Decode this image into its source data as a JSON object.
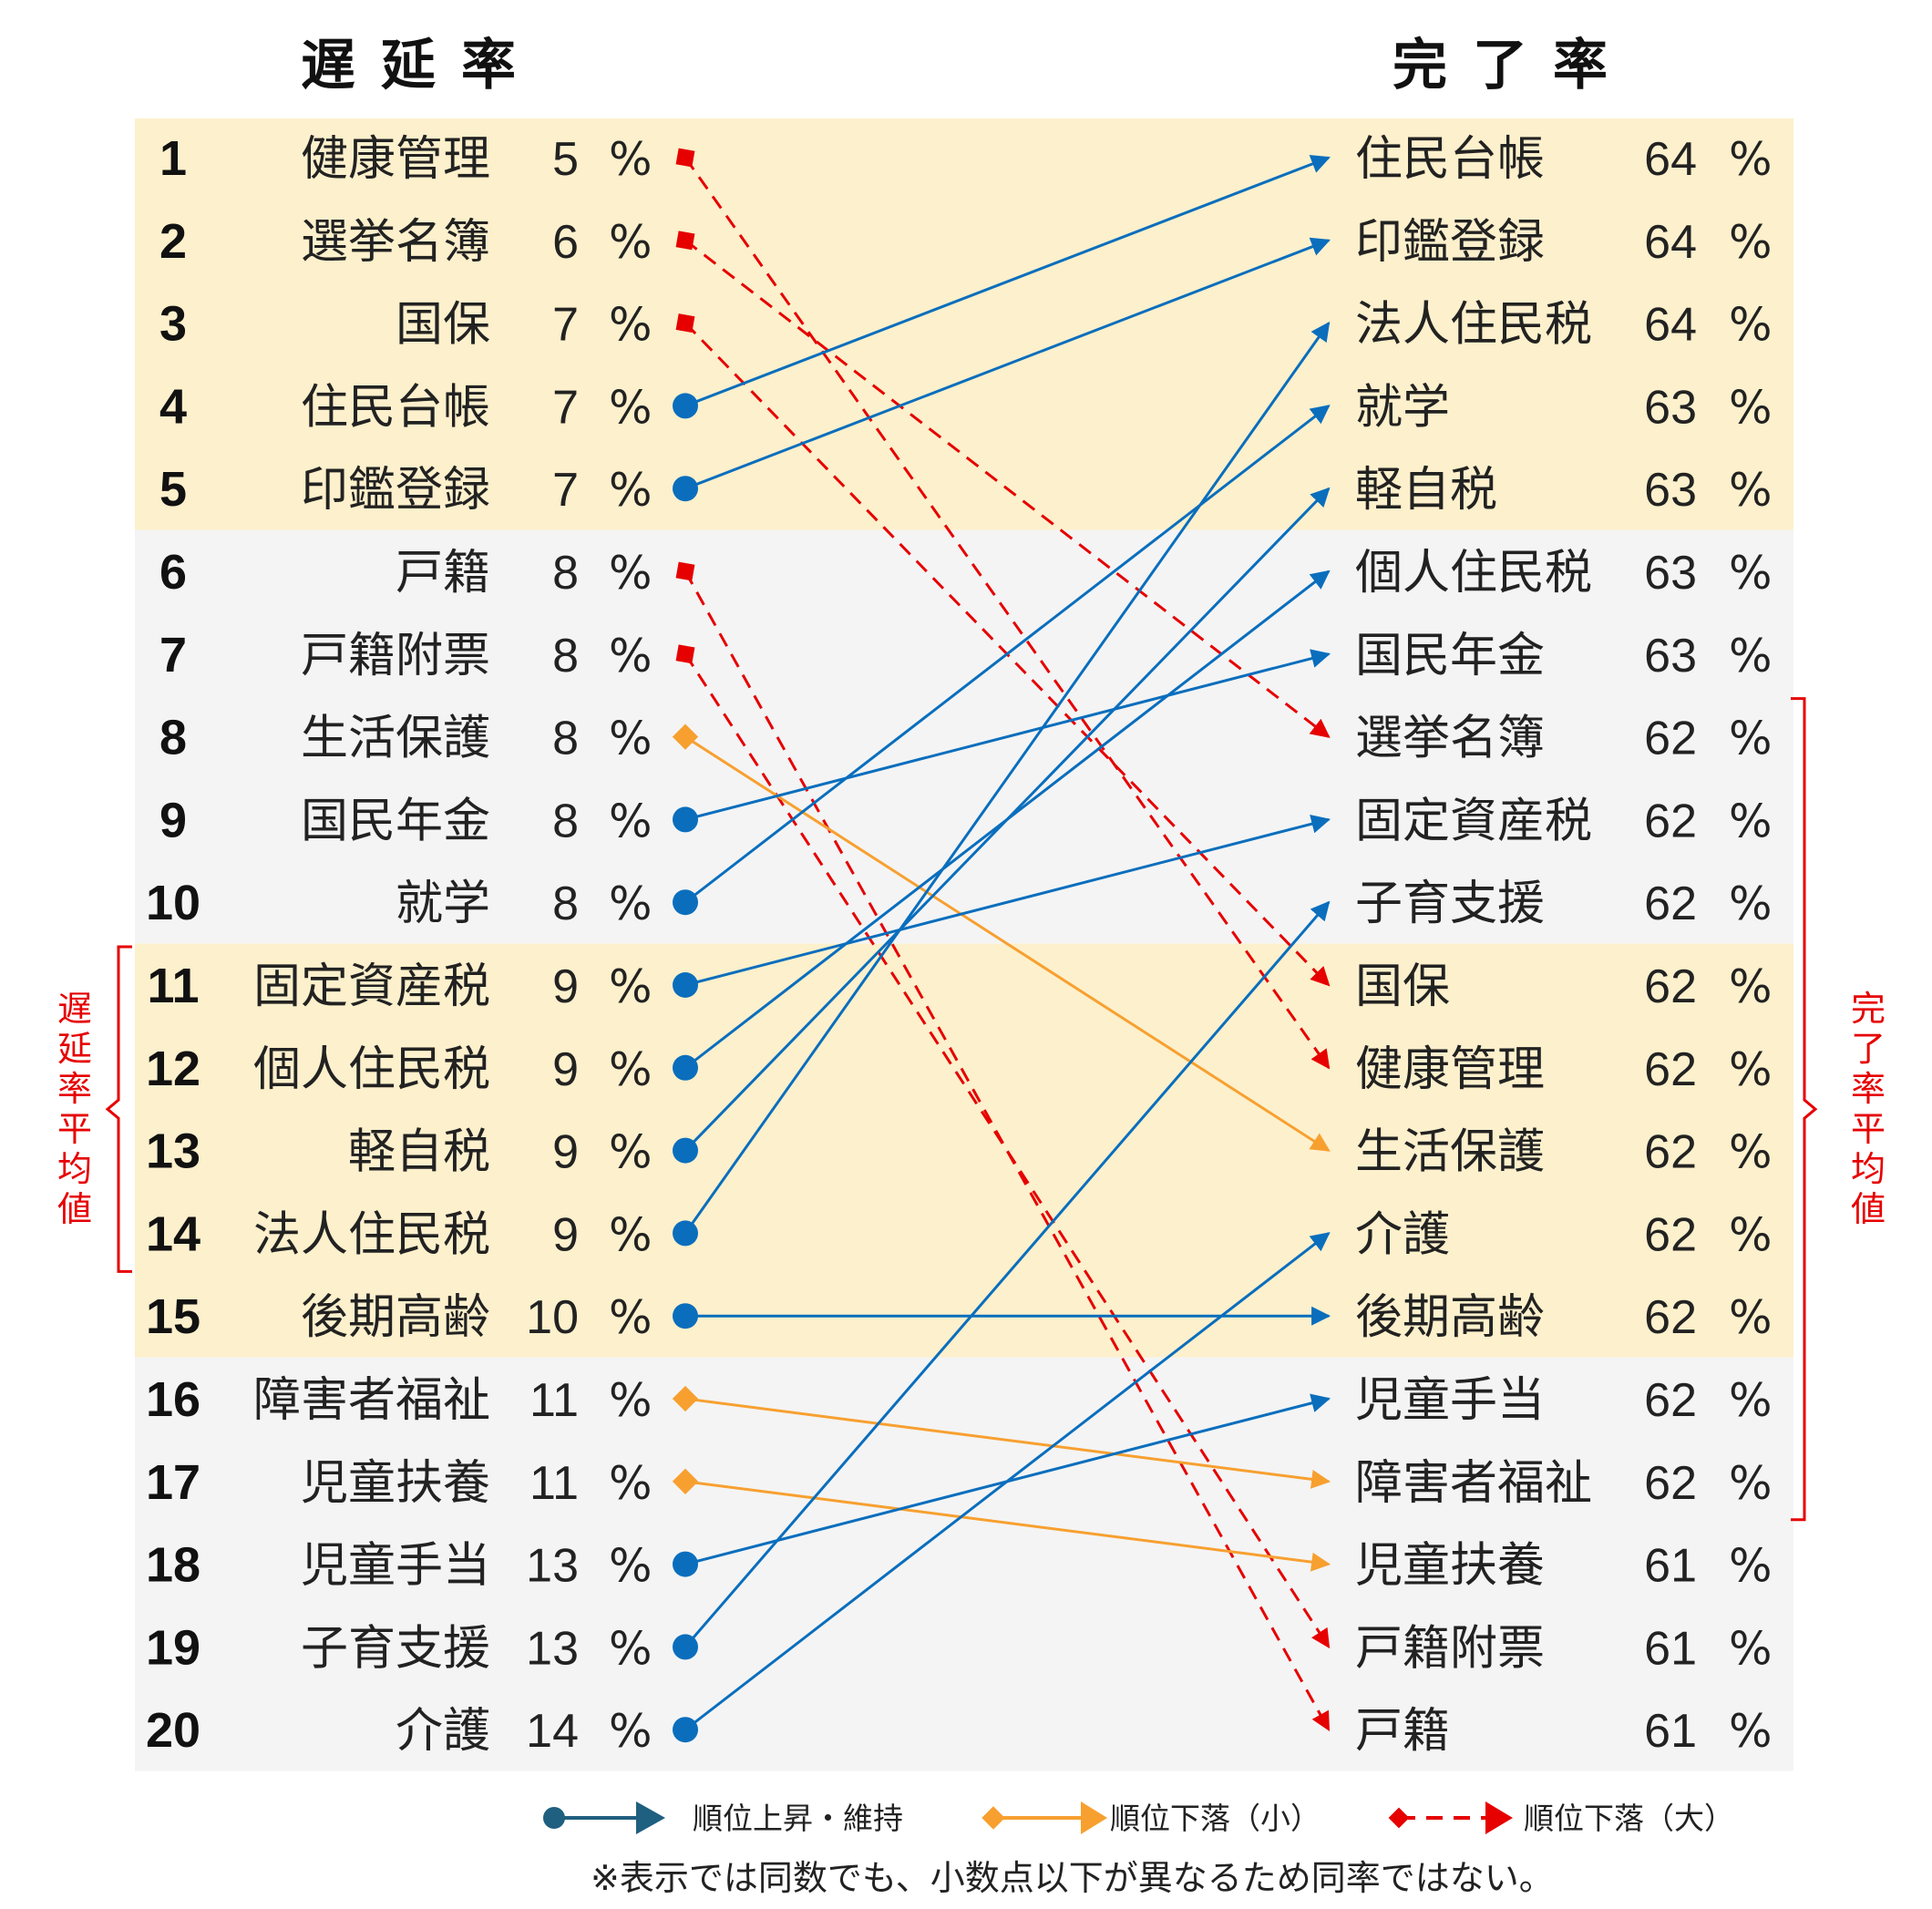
{
  "chart_data": {
    "type": "slope",
    "title_left": "遅延率",
    "title_right": "完了率",
    "left": [
      {
        "rank": "1",
        "name": "健康管理",
        "value": "5",
        "unit": "%"
      },
      {
        "rank": "2",
        "name": "選挙名簿",
        "value": "6",
        "unit": "%"
      },
      {
        "rank": "3",
        "name": "国保",
        "value": "7",
        "unit": "%"
      },
      {
        "rank": "4",
        "name": "住民台帳",
        "value": "7",
        "unit": "%"
      },
      {
        "rank": "5",
        "name": "印鑑登録",
        "value": "7",
        "unit": "%"
      },
      {
        "rank": "6",
        "name": "戸籍",
        "value": "8",
        "unit": "%"
      },
      {
        "rank": "7",
        "name": "戸籍附票",
        "value": "8",
        "unit": "%"
      },
      {
        "rank": "8",
        "name": "生活保護",
        "value": "8",
        "unit": "%"
      },
      {
        "rank": "9",
        "name": "国民年金",
        "value": "8",
        "unit": "%"
      },
      {
        "rank": "10",
        "name": "就学",
        "value": "8",
        "unit": "%"
      },
      {
        "rank": "11",
        "name": "固定資産税",
        "value": "9",
        "unit": "%"
      },
      {
        "rank": "12",
        "name": "個人住民税",
        "value": "9",
        "unit": "%"
      },
      {
        "rank": "13",
        "name": "軽自税",
        "value": "9",
        "unit": "%"
      },
      {
        "rank": "14",
        "name": "法人住民税",
        "value": "9",
        "unit": "%"
      },
      {
        "rank": "15",
        "name": "後期高齢",
        "value": "10",
        "unit": "%"
      },
      {
        "rank": "16",
        "name": "障害者福祉",
        "value": "11",
        "unit": "%"
      },
      {
        "rank": "17",
        "name": "児童扶養",
        "value": "11",
        "unit": "%"
      },
      {
        "rank": "18",
        "name": "児童手当",
        "value": "13",
        "unit": "%"
      },
      {
        "rank": "19",
        "name": "子育支援",
        "value": "13",
        "unit": "%"
      },
      {
        "rank": "20",
        "name": "介護",
        "value": "14",
        "unit": "%"
      }
    ],
    "right": [
      {
        "name": "住民台帳",
        "value": "64",
        "unit": "%"
      },
      {
        "name": "印鑑登録",
        "value": "64",
        "unit": "%"
      },
      {
        "name": "法人住民税",
        "value": "64",
        "unit": "%"
      },
      {
        "name": "就学",
        "value": "63",
        "unit": "%"
      },
      {
        "name": "軽自税",
        "value": "63",
        "unit": "%"
      },
      {
        "name": "個人住民税",
        "value": "63",
        "unit": "%"
      },
      {
        "name": "国民年金",
        "value": "63",
        "unit": "%"
      },
      {
        "name": "選挙名簿",
        "value": "62",
        "unit": "%"
      },
      {
        "name": "固定資産税",
        "value": "62",
        "unit": "%"
      },
      {
        "name": "子育支援",
        "value": "62",
        "unit": "%"
      },
      {
        "name": "国保",
        "value": "62",
        "unit": "%"
      },
      {
        "name": "健康管理",
        "value": "62",
        "unit": "%"
      },
      {
        "name": "生活保護",
        "value": "62",
        "unit": "%"
      },
      {
        "name": "介護",
        "value": "62",
        "unit": "%"
      },
      {
        "name": "後期高齢",
        "value": "62",
        "unit": "%"
      },
      {
        "name": "児童手当",
        "value": "62",
        "unit": "%"
      },
      {
        "name": "障害者福祉",
        "value": "62",
        "unit": "%"
      },
      {
        "name": "児童扶養",
        "value": "61",
        "unit": "%"
      },
      {
        "name": "戸籍附票",
        "value": "61",
        "unit": "%"
      },
      {
        "name": "戸籍",
        "value": "61",
        "unit": "%"
      }
    ],
    "links": [
      {
        "from": 1,
        "to": 12,
        "kind": "drop_large"
      },
      {
        "from": 2,
        "to": 8,
        "kind": "drop_large"
      },
      {
        "from": 3,
        "to": 11,
        "kind": "drop_large"
      },
      {
        "from": 4,
        "to": 1,
        "kind": "rise"
      },
      {
        "from": 5,
        "to": 2,
        "kind": "rise"
      },
      {
        "from": 6,
        "to": 20,
        "kind": "drop_large"
      },
      {
        "from": 7,
        "to": 19,
        "kind": "drop_large"
      },
      {
        "from": 8,
        "to": 13,
        "kind": "drop_small"
      },
      {
        "from": 9,
        "to": 7,
        "kind": "rise"
      },
      {
        "from": 10,
        "to": 4,
        "kind": "rise"
      },
      {
        "from": 11,
        "to": 9,
        "kind": "rise"
      },
      {
        "from": 12,
        "to": 6,
        "kind": "rise"
      },
      {
        "from": 13,
        "to": 5,
        "kind": "rise"
      },
      {
        "from": 14,
        "to": 3,
        "kind": "rise"
      },
      {
        "from": 15,
        "to": 15,
        "kind": "rise"
      },
      {
        "from": 16,
        "to": 17,
        "kind": "drop_small"
      },
      {
        "from": 17,
        "to": 18,
        "kind": "drop_small"
      },
      {
        "from": 18,
        "to": 16,
        "kind": "rise"
      },
      {
        "from": 19,
        "to": 10,
        "kind": "rise"
      },
      {
        "from": 20,
        "to": 14,
        "kind": "rise"
      }
    ],
    "band_groups": [
      {
        "rows": [
          1,
          5
        ],
        "color": "#fdf0cc"
      },
      {
        "rows": [
          6,
          10
        ],
        "color": "#f4f4f4"
      },
      {
        "rows": [
          11,
          15
        ],
        "color": "#fdf0cc"
      },
      {
        "rows": [
          16,
          20
        ],
        "color": "#f4f4f4"
      }
    ],
    "left_average_label": "遅延率平均値",
    "left_average_rows": [
      11,
      14
    ],
    "right_average_label": "完了率平均値",
    "right_average_rows": [
      8,
      17
    ],
    "colors": {
      "rise": "#0a6ebd",
      "drop_small": "#f7a030",
      "drop_large": "#e60000",
      "legend_rise": "#1f5f7f",
      "bracket": "#e60000"
    },
    "legend": [
      {
        "kind": "rise",
        "label": "順位上昇・維持"
      },
      {
        "kind": "drop_small",
        "label": "順位下落（小）"
      },
      {
        "kind": "drop_large",
        "label": "順位下落（大）"
      }
    ],
    "note": "※表示では同数でも、小数点以下が異なるため同率ではない。"
  }
}
